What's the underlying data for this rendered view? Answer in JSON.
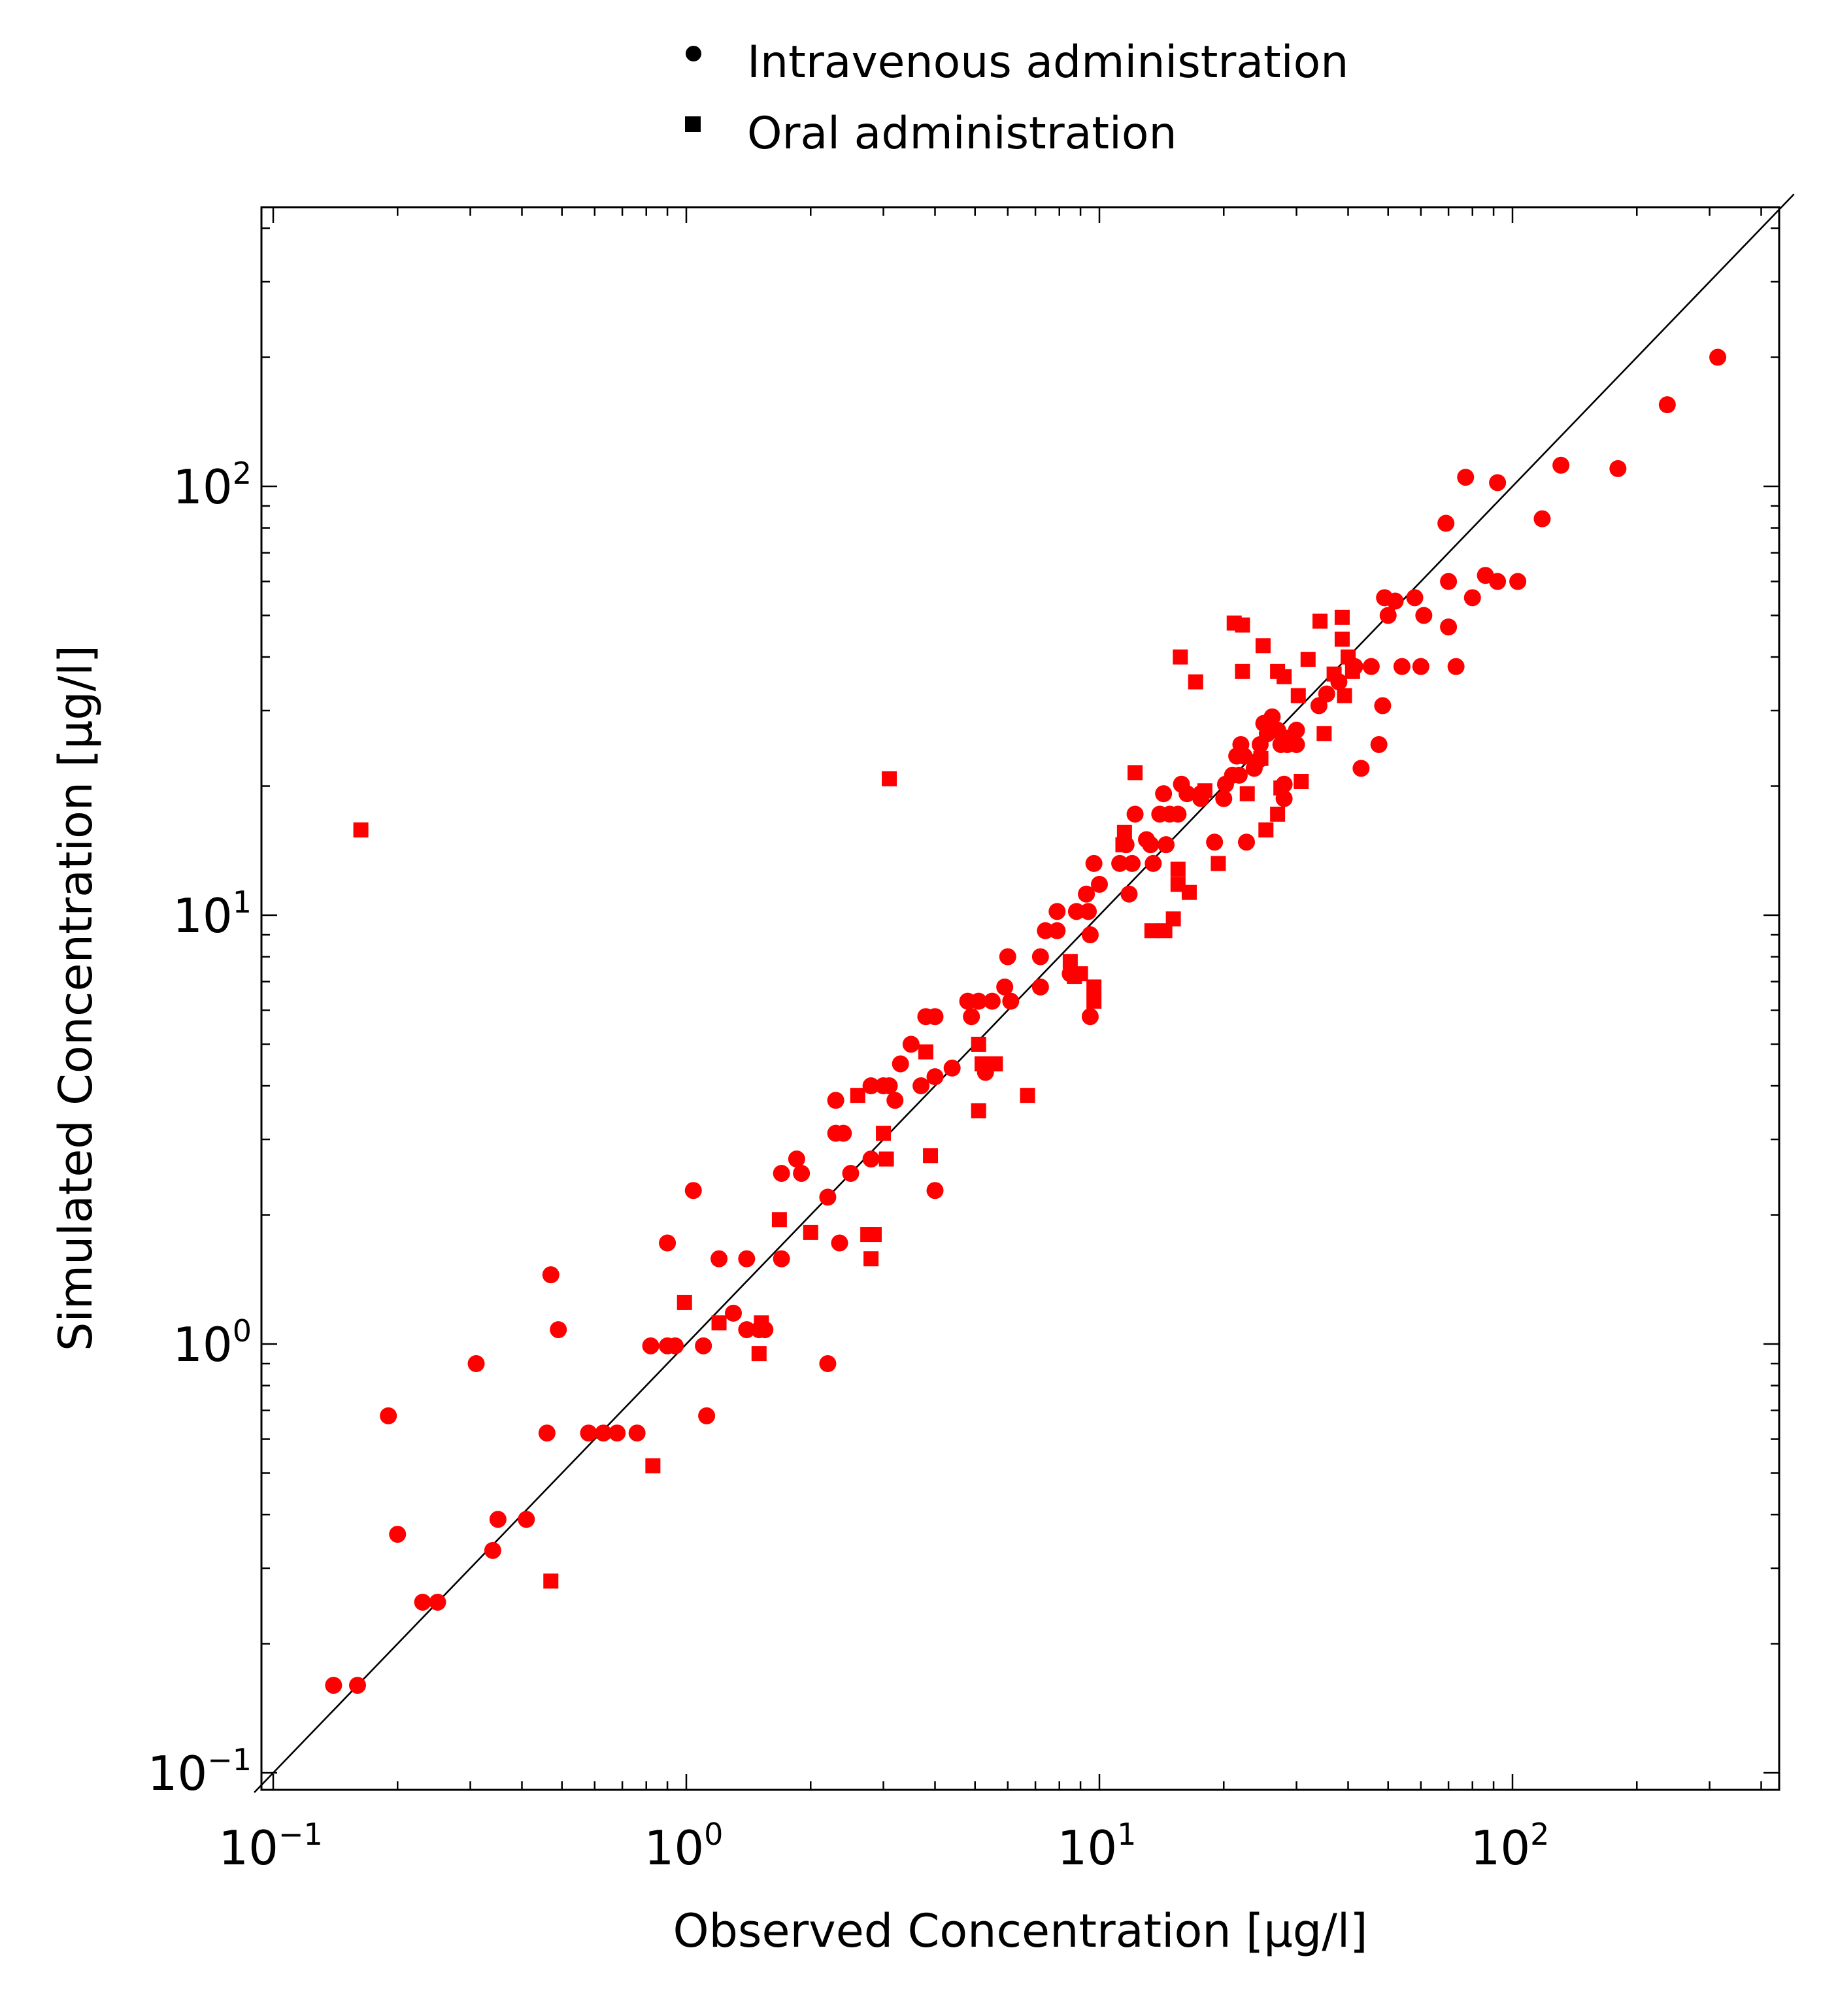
{
  "chart_data": {
    "type": "scatter",
    "xlabel": "Observed Concentration [µg/l]",
    "ylabel": "Simulated Concentration [µg/l]",
    "xscale": "log",
    "yscale": "log",
    "xlim": [
      0.09,
      480
    ],
    "ylim": [
      0.09,
      480
    ],
    "x_ticks": [
      {
        "base": "10",
        "exp": "−1",
        "value": 0.1
      },
      {
        "base": "10",
        "exp": "0",
        "value": 1
      },
      {
        "base": "10",
        "exp": "1",
        "value": 10
      },
      {
        "base": "10",
        "exp": "2",
        "value": 100
      }
    ],
    "y_ticks": [
      {
        "base": "10",
        "exp": "−1",
        "value": 0.1
      },
      {
        "base": "10",
        "exp": "0",
        "value": 1
      },
      {
        "base": "10",
        "exp": "1",
        "value": 10
      },
      {
        "base": "10",
        "exp": "2",
        "value": 100
      }
    ],
    "grid": false,
    "legend_position": "top-center",
    "reference_line": "identity",
    "marker_color": "#ff0000",
    "series": [
      {
        "name": "Intravenous administration",
        "marker": "circle",
        "points": [
          [
            0.14,
            0.16
          ],
          [
            0.16,
            0.16
          ],
          [
            0.19,
            0.68
          ],
          [
            0.2,
            0.36
          ],
          [
            0.23,
            0.25
          ],
          [
            0.25,
            0.25
          ],
          [
            0.31,
            0.9
          ],
          [
            0.34,
            0.33
          ],
          [
            0.35,
            0.39
          ],
          [
            0.41,
            0.39
          ],
          [
            0.46,
            0.62
          ],
          [
            0.47,
            1.45
          ],
          [
            0.49,
            1.08
          ],
          [
            0.58,
            0.62
          ],
          [
            0.63,
            0.62
          ],
          [
            0.68,
            0.62
          ],
          [
            0.76,
            0.62
          ],
          [
            0.82,
            0.99
          ],
          [
            0.9,
            1.72
          ],
          [
            0.9,
            0.99
          ],
          [
            0.94,
            0.99
          ],
          [
            1.04,
            2.28
          ],
          [
            1.1,
            0.99
          ],
          [
            1.12,
            0.68
          ],
          [
            1.2,
            1.58
          ],
          [
            1.3,
            1.18
          ],
          [
            1.4,
            1.58
          ],
          [
            1.4,
            1.08
          ],
          [
            1.5,
            1.08
          ],
          [
            1.55,
            1.08
          ],
          [
            1.7,
            2.5
          ],
          [
            1.7,
            1.58
          ],
          [
            1.85,
            2.7
          ],
          [
            1.9,
            2.5
          ],
          [
            2.2,
            0.9
          ],
          [
            2.2,
            2.2
          ],
          [
            2.3,
            3.7
          ],
          [
            2.3,
            3.1
          ],
          [
            2.35,
            1.72
          ],
          [
            2.4,
            3.1
          ],
          [
            2.5,
            2.5
          ],
          [
            2.8,
            4.0
          ],
          [
            2.8,
            2.7
          ],
          [
            3.0,
            4.0
          ],
          [
            3.1,
            4.0
          ],
          [
            3.2,
            3.7
          ],
          [
            3.3,
            4.5
          ],
          [
            3.5,
            5.0
          ],
          [
            3.7,
            4.0
          ],
          [
            3.8,
            5.8
          ],
          [
            4.0,
            2.28
          ],
          [
            4.0,
            4.2
          ],
          [
            4.0,
            5.8
          ],
          [
            4.4,
            4.4
          ],
          [
            4.8,
            6.3
          ],
          [
            4.9,
            5.8
          ],
          [
            5.1,
            6.3
          ],
          [
            5.3,
            4.3
          ],
          [
            5.5,
            6.3
          ],
          [
            5.9,
            6.8
          ],
          [
            6.0,
            8.0
          ],
          [
            6.1,
            6.3
          ],
          [
            7.2,
            6.8
          ],
          [
            7.2,
            8.0
          ],
          [
            7.4,
            9.2
          ],
          [
            7.9,
            9.2
          ],
          [
            7.9,
            10.2
          ],
          [
            8.5,
            7.3
          ],
          [
            8.8,
            10.2
          ],
          [
            9.3,
            11.2
          ],
          [
            9.4,
            10.2
          ],
          [
            9.5,
            5.8
          ],
          [
            9.5,
            9.0
          ],
          [
            9.7,
            13.2
          ],
          [
            10.0,
            11.8
          ],
          [
            11.2,
            13.2
          ],
          [
            11.6,
            14.6
          ],
          [
            11.8,
            11.2
          ],
          [
            12.0,
            13.2
          ],
          [
            12.2,
            17.2
          ],
          [
            13.0,
            15.0
          ],
          [
            13.3,
            14.6
          ],
          [
            13.5,
            13.2
          ],
          [
            14.0,
            17.2
          ],
          [
            14.3,
            19.2
          ],
          [
            14.5,
            14.6
          ],
          [
            14.8,
            17.2
          ],
          [
            15.5,
            17.2
          ],
          [
            15.8,
            20.2
          ],
          [
            16.3,
            19.2
          ],
          [
            17.6,
            19.2
          ],
          [
            17.6,
            18.7
          ],
          [
            19.0,
            14.8
          ],
          [
            20.0,
            18.7
          ],
          [
            20.2,
            20.2
          ],
          [
            21.0,
            21.2
          ],
          [
            21.5,
            23.5
          ],
          [
            21.8,
            21.2
          ],
          [
            22.0,
            25.0
          ],
          [
            22.4,
            23.5
          ],
          [
            22.7,
            14.8
          ],
          [
            23.7,
            22.0
          ],
          [
            24.3,
            23.0
          ],
          [
            24.5,
            25.0
          ],
          [
            25.0,
            28.0
          ],
          [
            25.5,
            26.5
          ],
          [
            26.2,
            29.0
          ],
          [
            27.0,
            27.0
          ],
          [
            27.5,
            25.0
          ],
          [
            28.0,
            20.2
          ],
          [
            28.0,
            18.7
          ],
          [
            28.5,
            25.0
          ],
          [
            30.0,
            25.0
          ],
          [
            30.0,
            27.0
          ],
          [
            34.0,
            30.8
          ],
          [
            35.5,
            32.8
          ],
          [
            38.0,
            35.0
          ],
          [
            41.5,
            38.0
          ],
          [
            43.0,
            22.0
          ],
          [
            45.5,
            38.0
          ],
          [
            47.5,
            25.0
          ],
          [
            48.5,
            30.8
          ],
          [
            49.0,
            55.0
          ],
          [
            50.0,
            50.0
          ],
          [
            52.0,
            54.0
          ],
          [
            54.0,
            38.0
          ],
          [
            58.0,
            55.0
          ],
          [
            60.0,
            38.0
          ],
          [
            61.0,
            50.0
          ],
          [
            69.0,
            82.0
          ],
          [
            70.0,
            60.0
          ],
          [
            70.0,
            47.0
          ],
          [
            73.0,
            38.0
          ],
          [
            77.0,
            105.0
          ],
          [
            80.0,
            55.0
          ],
          [
            86.0,
            62.0
          ],
          [
            92.0,
            102.0
          ],
          [
            92.0,
            60.0
          ],
          [
            103.0,
            60.0
          ],
          [
            118.0,
            84.0
          ],
          [
            131.0,
            112.0
          ],
          [
            180.0,
            110.0
          ],
          [
            237.0,
            155.0
          ],
          [
            314.0,
            200.0
          ]
        ]
      },
      {
        "name": "Oral administration",
        "marker": "square",
        "points": [
          [
            0.163,
            15.8
          ],
          [
            0.47,
            0.28
          ],
          [
            0.83,
            0.52
          ],
          [
            0.99,
            1.25
          ],
          [
            1.2,
            1.12
          ],
          [
            1.5,
            0.95
          ],
          [
            1.52,
            1.12
          ],
          [
            1.68,
            1.95
          ],
          [
            2.0,
            1.82
          ],
          [
            2.6,
            3.8
          ],
          [
            2.75,
            1.8
          ],
          [
            2.8,
            1.58
          ],
          [
            2.85,
            1.8
          ],
          [
            3.0,
            3.1
          ],
          [
            3.05,
            2.7
          ],
          [
            3.1,
            20.8
          ],
          [
            3.8,
            4.8
          ],
          [
            3.9,
            2.75
          ],
          [
            5.1,
            3.5
          ],
          [
            5.1,
            5.0
          ],
          [
            5.2,
            4.5
          ],
          [
            5.6,
            4.5
          ],
          [
            6.7,
            3.8
          ],
          [
            8.5,
            7.8
          ],
          [
            8.7,
            7.2
          ],
          [
            9.0,
            7.3
          ],
          [
            9.7,
            6.8
          ],
          [
            9.7,
            6.3
          ],
          [
            11.4,
            14.6
          ],
          [
            11.5,
            15.6
          ],
          [
            12.2,
            21.5
          ],
          [
            13.4,
            9.2
          ],
          [
            14.4,
            9.2
          ],
          [
            15.1,
            9.8
          ],
          [
            15.5,
            11.8
          ],
          [
            15.5,
            12.8
          ],
          [
            15.7,
            40.0
          ],
          [
            16.5,
            11.3
          ],
          [
            17.1,
            35.0
          ],
          [
            18.0,
            19.5
          ],
          [
            19.4,
            13.2
          ],
          [
            21.2,
            48.0
          ],
          [
            22.2,
            47.5
          ],
          [
            22.2,
            37.0
          ],
          [
            22.8,
            19.2
          ],
          [
            24.6,
            23.2
          ],
          [
            24.9,
            42.5
          ],
          [
            25.3,
            15.8
          ],
          [
            27.0,
            37.0
          ],
          [
            27.0,
            17.2
          ],
          [
            27.5,
            19.8
          ],
          [
            28.0,
            36.0
          ],
          [
            28.8,
            26.0
          ],
          [
            30.3,
            32.5
          ],
          [
            30.8,
            20.5
          ],
          [
            32.0,
            39.5
          ],
          [
            34.2,
            48.5
          ],
          [
            35.0,
            26.5
          ],
          [
            37.0,
            36.5
          ],
          [
            38.7,
            44.0
          ],
          [
            38.7,
            49.5
          ],
          [
            39.2,
            32.5
          ],
          [
            40.0,
            40.0
          ],
          [
            41.0,
            37.0
          ]
        ]
      }
    ]
  }
}
